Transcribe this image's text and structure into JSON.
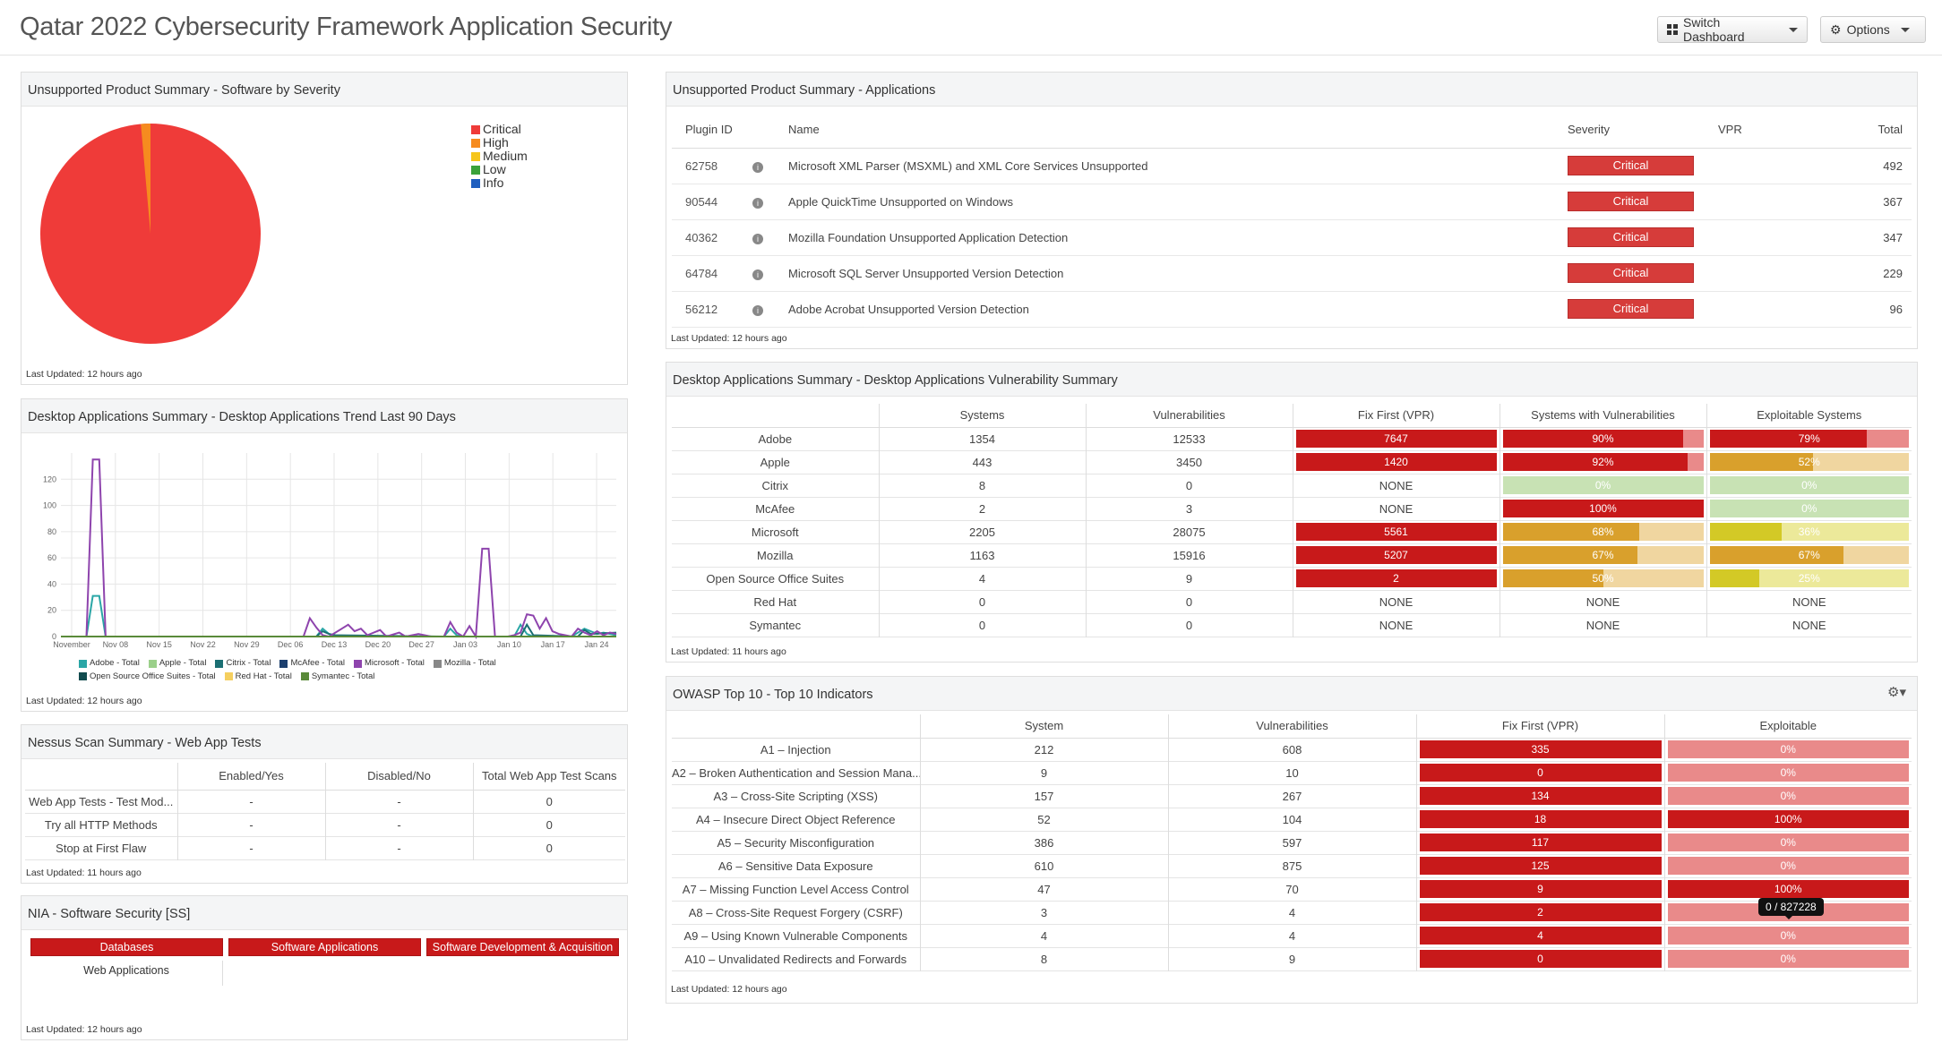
{
  "header": {
    "title": "Qatar 2022 Cybersecurity Framework Application Security",
    "switch_dashboard": "Switch Dashboard",
    "options": "Options"
  },
  "colors": {
    "critical": "#ef3b39",
    "high": "#f68b1f",
    "medium": "#f6c61b",
    "low": "#3aa23a",
    "info": "#1f5fbf",
    "bar_red": "#c8191a",
    "bar_orange": "#d9a02c",
    "bar_green": "#8ec46a",
    "bar_yellow": "#d3c926"
  },
  "panel_software_severity": {
    "title": "Unsupported Product Summary - Software by Severity",
    "legend": [
      "Critical",
      "High",
      "Medium",
      "Low",
      "Info"
    ],
    "updated": "Last Updated: 12 hours ago",
    "chart_data": {
      "type": "pie",
      "labels": [
        "Critical",
        "High",
        "Medium",
        "Low",
        "Info"
      ],
      "values": [
        98.6,
        1.4,
        0,
        0,
        0
      ]
    }
  },
  "panel_applications": {
    "title": "Unsupported Product Summary - Applications",
    "columns": [
      "Plugin ID",
      "Name",
      "Severity",
      "VPR",
      "Total"
    ],
    "rows": [
      {
        "id": "62758",
        "name": "Microsoft XML Parser (MSXML) and XML Core Services Unsupported",
        "severity": "Critical",
        "vpr": "",
        "total": "492"
      },
      {
        "id": "90544",
        "name": "Apple QuickTime Unsupported on Windows",
        "severity": "Critical",
        "vpr": "",
        "total": "367"
      },
      {
        "id": "40362",
        "name": "Mozilla Foundation Unsupported Application Detection",
        "severity": "Critical",
        "vpr": "",
        "total": "347"
      },
      {
        "id": "64784",
        "name": "Microsoft SQL Server Unsupported Version Detection",
        "severity": "Critical",
        "vpr": "",
        "total": "229"
      },
      {
        "id": "56212",
        "name": "Adobe Acrobat Unsupported Version Detection",
        "severity": "Critical",
        "vpr": "",
        "total": "96"
      }
    ],
    "updated": "Last Updated: 12 hours ago"
  },
  "panel_trend": {
    "title": "Desktop Applications Summary - Desktop Applications Trend Last 90 Days",
    "updated": "Last Updated: 12 hours ago",
    "chart_data": {
      "type": "line",
      "x_ticks": [
        "November",
        "Nov 08",
        "Nov 15",
        "Nov 22",
        "Nov 29",
        "Dec 06",
        "Dec 13",
        "Dec 20",
        "Dec 27",
        "Jan 03",
        "Jan 10",
        "Jan 17",
        "Jan 24"
      ],
      "y_ticks": [
        "0",
        "20",
        "40",
        "60",
        "80",
        "100",
        "120"
      ],
      "ylim": [
        0,
        140
      ],
      "grid": true,
      "x_count": 88,
      "series": [
        {
          "name": "Adobe - Total",
          "color": "#2aa6a6",
          "points": [
            [
              0,
              0
            ],
            [
              4,
              0
            ],
            [
              5,
              31
            ],
            [
              6,
              31
            ],
            [
              7,
              0
            ],
            [
              40,
              0
            ],
            [
              41,
              6
            ],
            [
              42,
              2
            ],
            [
              43,
              0
            ],
            [
              60,
              0
            ],
            [
              61,
              6
            ],
            [
              62,
              1
            ],
            [
              63,
              0
            ],
            [
              71,
              0
            ],
            [
              72,
              9
            ],
            [
              73,
              2
            ],
            [
              74,
              0
            ],
            [
              80,
              0
            ],
            [
              82,
              6
            ],
            [
              84,
              2
            ],
            [
              85,
              3
            ],
            [
              87,
              1
            ]
          ]
        },
        {
          "name": "Apple - Total",
          "color": "#9bd08a",
          "points": [
            [
              0,
              0
            ],
            [
              87,
              0
            ]
          ]
        },
        {
          "name": "Citrix - Total",
          "color": "#1b6f73",
          "points": [
            [
              0,
              0
            ],
            [
              40,
              0
            ],
            [
              41,
              4
            ],
            [
              42,
              2
            ],
            [
              43,
              1
            ],
            [
              60,
              0
            ],
            [
              72,
              0
            ],
            [
              73,
              9
            ],
            [
              74,
              1
            ],
            [
              81,
              0
            ],
            [
              82,
              5
            ],
            [
              83,
              2
            ],
            [
              87,
              3
            ]
          ]
        },
        {
          "name": "McAfee - Total",
          "color": "#1c3f6e",
          "points": [
            [
              0,
              0
            ],
            [
              87,
              0
            ]
          ]
        },
        {
          "name": "Microsoft - Total",
          "color": "#8e44ad",
          "points": [
            [
              0,
              0
            ],
            [
              4,
              0
            ],
            [
              5,
              135
            ],
            [
              6,
              135
            ],
            [
              7,
              0
            ],
            [
              38,
              0
            ],
            [
              39,
              14
            ],
            [
              40,
              7
            ],
            [
              41,
              1
            ],
            [
              42,
              0
            ],
            [
              44,
              6
            ],
            [
              45,
              9
            ],
            [
              46,
              4
            ],
            [
              47,
              6
            ],
            [
              48,
              1
            ],
            [
              50,
              5
            ],
            [
              51,
              0
            ],
            [
              53,
              3
            ],
            [
              54,
              0
            ],
            [
              56,
              2
            ],
            [
              58,
              0
            ],
            [
              60,
              0
            ],
            [
              61,
              11
            ],
            [
              62,
              3
            ],
            [
              63,
              0
            ],
            [
              64,
              8
            ],
            [
              65,
              0
            ],
            [
              66,
              67
            ],
            [
              67,
              67
            ],
            [
              68,
              0
            ],
            [
              70,
              0
            ],
            [
              71,
              1
            ],
            [
              72,
              3
            ],
            [
              73,
              17
            ],
            [
              74,
              16
            ],
            [
              75,
              6
            ],
            [
              76,
              14
            ],
            [
              77,
              4
            ],
            [
              78,
              2
            ],
            [
              80,
              0
            ],
            [
              81,
              6
            ],
            [
              82,
              3
            ],
            [
              83,
              1
            ],
            [
              84,
              4
            ],
            [
              85,
              1
            ],
            [
              86,
              3
            ],
            [
              87,
              2
            ]
          ]
        },
        {
          "name": "Mozilla - Total",
          "color": "#888888",
          "points": [
            [
              0,
              0
            ],
            [
              87,
              0
            ]
          ]
        },
        {
          "name": "Open Source Office Suites - Total",
          "color": "#114b4e",
          "points": [
            [
              0,
              0
            ],
            [
              87,
              0
            ]
          ]
        },
        {
          "name": "Red Hat - Total",
          "color": "#f5cf5f",
          "points": [
            [
              0,
              0
            ],
            [
              87,
              0
            ]
          ]
        },
        {
          "name": "Symantec - Total",
          "color": "#5a8a3a",
          "points": [
            [
              0,
              0
            ],
            [
              87,
              0
            ]
          ]
        }
      ]
    }
  },
  "panel_vuln_summary": {
    "title": "Desktop Applications Summary - Desktop Applications Vulnerability Summary",
    "columns": [
      "",
      "Systems",
      "Vulnerabilities",
      "Fix First (VPR)",
      "Systems with Vulnerabilities",
      "Exploitable Systems"
    ],
    "rows": [
      {
        "name": "Adobe",
        "systems": "1354",
        "vulns": "12533",
        "fix": "7647",
        "fix_bar": true,
        "swv": "90%",
        "swv_pct": 90,
        "swv_color": "#c8191a",
        "exp": "79%",
        "exp_pct": 79,
        "exp_color": "#c8191a"
      },
      {
        "name": "Apple",
        "systems": "443",
        "vulns": "3450",
        "fix": "1420",
        "fix_bar": true,
        "swv": "92%",
        "swv_pct": 92,
        "swv_color": "#c8191a",
        "exp": "52%",
        "exp_pct": 52,
        "exp_color": "#d9a02c"
      },
      {
        "name": "Citrix",
        "systems": "8",
        "vulns": "0",
        "fix": "NONE",
        "fix_bar": false,
        "swv": "0%",
        "swv_pct": 0,
        "swv_color": "#8ec46a",
        "exp": "0%",
        "exp_pct": 0,
        "exp_color": "#8ec46a"
      },
      {
        "name": "McAfee",
        "systems": "2",
        "vulns": "3",
        "fix": "NONE",
        "fix_bar": false,
        "swv": "100%",
        "swv_pct": 100,
        "swv_color": "#c8191a",
        "exp": "0%",
        "exp_pct": 0,
        "exp_color": "#8ec46a"
      },
      {
        "name": "Microsoft",
        "systems": "2205",
        "vulns": "28075",
        "fix": "5561",
        "fix_bar": true,
        "swv": "68%",
        "swv_pct": 68,
        "swv_color": "#d9a02c",
        "exp": "36%",
        "exp_pct": 36,
        "exp_color": "#d3c926"
      },
      {
        "name": "Mozilla",
        "systems": "1163",
        "vulns": "15916",
        "fix": "5207",
        "fix_bar": true,
        "swv": "67%",
        "swv_pct": 67,
        "swv_color": "#d9a02c",
        "exp": "67%",
        "exp_pct": 67,
        "exp_color": "#d9a02c"
      },
      {
        "name": "Open Source Office Suites",
        "systems": "4",
        "vulns": "9",
        "fix": "2",
        "fix_bar": true,
        "swv": "50%",
        "swv_pct": 50,
        "swv_color": "#d9a02c",
        "exp": "25%",
        "exp_pct": 25,
        "exp_color": "#d3c926"
      },
      {
        "name": "Red Hat",
        "systems": "0",
        "vulns": "0",
        "fix": "NONE",
        "fix_bar": false,
        "swv": "NONE",
        "swv_pct": null,
        "swv_color": "",
        "exp": "NONE",
        "exp_pct": null,
        "exp_color": ""
      },
      {
        "name": "Symantec",
        "systems": "0",
        "vulns": "0",
        "fix": "NONE",
        "fix_bar": false,
        "swv": "NONE",
        "swv_pct": null,
        "swv_color": "",
        "exp": "NONE",
        "exp_pct": null,
        "exp_color": ""
      }
    ],
    "updated": "Last Updated: 11 hours ago"
  },
  "panel_web_app_tests": {
    "title": "Nessus Scan Summary - Web App Tests",
    "columns": [
      "",
      "Enabled/Yes",
      "Disabled/No",
      "Total Web App Test Scans"
    ],
    "rows": [
      {
        "name": "Web App Tests - Test Mod...",
        "enabled": "-",
        "disabled": "-",
        "total": "0"
      },
      {
        "name": "Try all HTTP Methods",
        "enabled": "-",
        "disabled": "-",
        "total": "0"
      },
      {
        "name": "Stop at First Flaw",
        "enabled": "-",
        "disabled": "-",
        "total": "0"
      }
    ],
    "updated": "Last Updated: 11 hours ago"
  },
  "panel_owasp": {
    "title": "OWASP Top 10 - Top 10 Indicators",
    "columns": [
      "",
      "System",
      "Vulnerabilities",
      "Fix First (VPR)",
      "Exploitable"
    ],
    "rows": [
      {
        "name": "A1 – Injection",
        "system": "212",
        "vulns": "608",
        "fix": "335",
        "exp": "0%",
        "exp_pct": 0
      },
      {
        "name": "A2 – Broken Authentication and Session Mana...",
        "system": "9",
        "vulns": "10",
        "fix": "0",
        "exp": "0%",
        "exp_pct": 0
      },
      {
        "name": "A3 – Cross-Site Scripting (XSS)",
        "system": "157",
        "vulns": "267",
        "fix": "134",
        "exp": "0%",
        "exp_pct": 0
      },
      {
        "name": "A4 – Insecure Direct Object Reference",
        "system": "52",
        "vulns": "104",
        "fix": "18",
        "exp": "100%",
        "exp_pct": 100
      },
      {
        "name": "A5 – Security Misconfiguration",
        "system": "386",
        "vulns": "597",
        "fix": "117",
        "exp": "0%",
        "exp_pct": 0
      },
      {
        "name": "A6 – Sensitive Data Exposure",
        "system": "610",
        "vulns": "875",
        "fix": "125",
        "exp": "0%",
        "exp_pct": 0
      },
      {
        "name": "A7 – Missing Function Level Access Control",
        "system": "47",
        "vulns": "70",
        "fix": "9",
        "exp": "100%",
        "exp_pct": 100
      },
      {
        "name": "A8 – Cross-Site Request Forgery (CSRF)",
        "system": "3",
        "vulns": "4",
        "fix": "2",
        "exp": "0%",
        "exp_pct": 0
      },
      {
        "name": "A9 – Using Known Vulnerable Components",
        "system": "4",
        "vulns": "4",
        "fix": "4",
        "exp": "0%",
        "exp_pct": 0
      },
      {
        "name": "A10 – Unvalidated Redirects and Forwards",
        "system": "8",
        "vulns": "9",
        "fix": "0",
        "exp": "0%",
        "exp_pct": 0
      }
    ],
    "tooltip": "0 / 827228",
    "updated": "Last Updated: 12 hours ago"
  },
  "panel_nia": {
    "title": "NIA - Software Security [SS]",
    "buttons": [
      "Databases",
      "Software Applications",
      "Software Development & Acquisition"
    ],
    "sub": "Web Applications",
    "updated": "Last Updated: 12 hours ago"
  }
}
